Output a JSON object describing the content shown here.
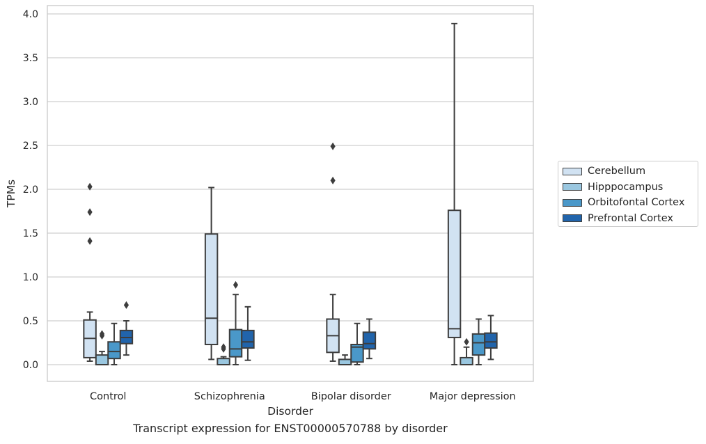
{
  "chart_data": {
    "type": "boxplot",
    "title": "",
    "caption": "Transcript expression for ENST00000570788 by disorder",
    "xlabel": "Disorder",
    "ylabel": "TPMs",
    "ylim": [
      -0.19,
      4.1
    ],
    "yticks": [
      "0.0",
      "0.5",
      "1.0",
      "1.5",
      "2.0",
      "2.5",
      "3.0",
      "3.5",
      "4.0"
    ],
    "grid": true,
    "legend_position": "right",
    "categories": [
      "Control",
      "Schizophrenia",
      "Bipolar disorder",
      "Major depression"
    ],
    "series": [
      {
        "name": "Cerebellum",
        "color": "#d1e2f2",
        "boxes": [
          {
            "min": 0.04,
            "q1": 0.08,
            "median": 0.3,
            "q3": 0.51,
            "max": 0.6,
            "outliers": [
              1.41,
              1.74,
              2.03
            ]
          },
          {
            "min": 0.06,
            "q1": 0.23,
            "median": 0.53,
            "q3": 1.49,
            "max": 2.02,
            "outliers": []
          },
          {
            "min": 0.04,
            "q1": 0.14,
            "median": 0.33,
            "q3": 0.52,
            "max": 0.8,
            "outliers": [
              2.1,
              2.49
            ]
          },
          {
            "min": 0.0,
            "q1": 0.31,
            "median": 0.41,
            "q3": 1.76,
            "max": 3.89,
            "outliers": []
          }
        ]
      },
      {
        "name": "Hipppocampus",
        "color": "#9ac7e0",
        "boxes": [
          {
            "min": 0.0,
            "q1": 0.0,
            "median": 0.0,
            "q3": 0.11,
            "max": 0.15,
            "outliers": [
              0.33,
              0.35
            ]
          },
          {
            "min": 0.0,
            "q1": 0.0,
            "median": 0.0,
            "q3": 0.07,
            "max": 0.09,
            "outliers": [
              0.18,
              0.2
            ]
          },
          {
            "min": 0.0,
            "q1": 0.0,
            "median": 0.0,
            "q3": 0.06,
            "max": 0.11,
            "outliers": []
          },
          {
            "min": 0.0,
            "q1": 0.0,
            "median": 0.0,
            "q3": 0.08,
            "max": 0.2,
            "outliers": [
              0.26
            ]
          }
        ]
      },
      {
        "name": "Orbitofontal Cortex",
        "color": "#4a98c9",
        "boxes": [
          {
            "min": 0.0,
            "q1": 0.07,
            "median": 0.15,
            "q3": 0.26,
            "max": 0.47,
            "outliers": []
          },
          {
            "min": 0.0,
            "q1": 0.09,
            "median": 0.18,
            "q3": 0.4,
            "max": 0.8,
            "outliers": [
              0.91
            ]
          },
          {
            "min": 0.0,
            "q1": 0.03,
            "median": 0.2,
            "q3": 0.23,
            "max": 0.47,
            "outliers": []
          },
          {
            "min": 0.0,
            "q1": 0.11,
            "median": 0.25,
            "q3": 0.35,
            "max": 0.52,
            "outliers": []
          }
        ]
      },
      {
        "name": "Prefrontal Cortex",
        "color": "#2164ab",
        "boxes": [
          {
            "min": 0.11,
            "q1": 0.24,
            "median": 0.31,
            "q3": 0.39,
            "max": 0.5,
            "outliers": [
              0.68
            ]
          },
          {
            "min": 0.05,
            "q1": 0.19,
            "median": 0.26,
            "q3": 0.39,
            "max": 0.66,
            "outliers": []
          },
          {
            "min": 0.07,
            "q1": 0.18,
            "median": 0.24,
            "q3": 0.37,
            "max": 0.52,
            "outliers": []
          },
          {
            "min": 0.06,
            "q1": 0.19,
            "median": 0.26,
            "q3": 0.36,
            "max": 0.56,
            "outliers": []
          }
        ]
      }
    ]
  }
}
